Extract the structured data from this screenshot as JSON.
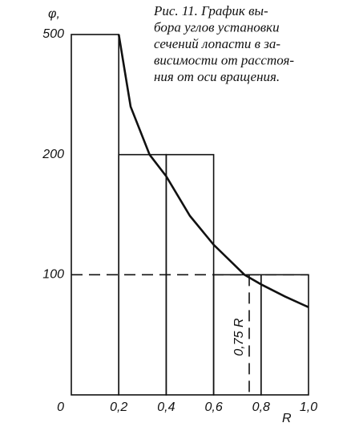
{
  "chart_data": {
    "type": "histogram",
    "caption": [
      "Рис. 11. График вы-",
      "бора углов установки",
      "сечений лопасти в за-",
      "висимости от расстоя-",
      "ния от оси вращения."
    ],
    "ylabel": "φ,",
    "xlabel": "R",
    "bins": [
      0,
      0.2,
      0.4,
      0.6,
      0.8,
      1.0
    ],
    "values": [
      500,
      200,
      200,
      100,
      100
    ],
    "curve": {
      "x": [
        0.2,
        0.25,
        0.33,
        0.4,
        0.5,
        0.6,
        0.73,
        0.8,
        0.9,
        1.0
      ],
      "values": [
        500,
        320,
        200,
        182,
        149,
        125,
        100,
        92,
        82,
        73
      ]
    },
    "hline": 100,
    "vline": {
      "value": 0.75,
      "label": "0,75 R"
    },
    "xlim": [
      0,
      1.0
    ],
    "ylim": [
      0,
      500
    ],
    "xticks": [
      0,
      {
        "value": 0.2,
        "label": "0,2"
      },
      {
        "value": 0.4,
        "label": "0,4"
      },
      {
        "value": 0.6,
        "label": "0,6"
      },
      {
        "value": 0.8,
        "label": "0,8"
      },
      {
        "value": 1.0,
        "label": "1,0"
      }
    ],
    "yticks": [
      0,
      100,
      200,
      500
    ],
    "color": "#111111"
  }
}
